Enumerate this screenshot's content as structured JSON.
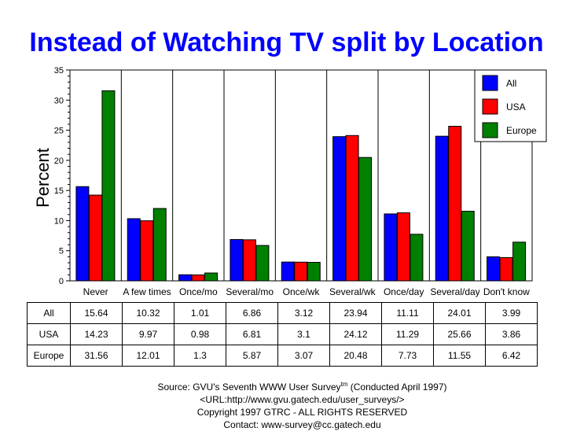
{
  "chart_data": {
    "type": "bar",
    "title": "Instead of Watching TV split by Location",
    "ylabel": "Percent",
    "xlabel": "",
    "ylim": [
      0,
      35
    ],
    "yticks": [
      0,
      5,
      10,
      15,
      20,
      25,
      30,
      35
    ],
    "categories": [
      "Never",
      "A few times",
      "Once/mo",
      "Several/mo",
      "Once/wk",
      "Several/wk",
      "Once/day",
      "Several/day",
      "Don't know"
    ],
    "series": [
      {
        "name": "All",
        "color": "#0000ff",
        "values": [
          15.64,
          10.32,
          1.01,
          6.86,
          3.12,
          23.94,
          11.11,
          24.01,
          3.99
        ],
        "labels": [
          "15.64",
          "10.32",
          "1.01",
          "6.86",
          "3.12",
          "23.94",
          "11.11",
          "24.01",
          "3.99"
        ]
      },
      {
        "name": "USA",
        "color": "#ff0000",
        "values": [
          14.23,
          9.97,
          0.98,
          6.81,
          3.1,
          24.12,
          11.29,
          25.66,
          3.86
        ],
        "labels": [
          "14.23",
          "9.97",
          "0.98",
          "6.81",
          "3.1",
          "24.12",
          "11.29",
          "25.66",
          "3.86"
        ]
      },
      {
        "name": "Europe",
        "color": "#008000",
        "values": [
          31.56,
          12.01,
          1.3,
          5.87,
          3.07,
          20.48,
          7.73,
          11.55,
          6.42
        ],
        "labels": [
          "31.56",
          "12.01",
          "1.3",
          "5.87",
          "3.07",
          "20.48",
          "7.73",
          "11.55",
          "6.42"
        ]
      }
    ],
    "legend_position": "top-right",
    "grid": false
  },
  "source": {
    "line1": "Source: GVU's Seventh WWW User Survey",
    "line1_sup": "tm",
    "line1_end": " (Conducted April 1997)",
    "line2": "<URL:http://www.gvu.gatech.edu/user_surveys/>",
    "line3": "Copyright 1997 GTRC - ALL RIGHTS RESERVED",
    "line4": "Contact: www-survey@cc.gatech.edu"
  }
}
